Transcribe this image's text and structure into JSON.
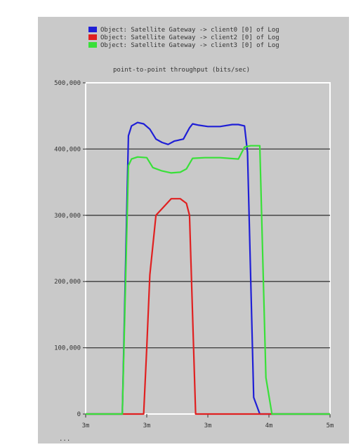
{
  "chart_data": {
    "type": "line",
    "title": "point-to-point throughput (bits/sec)",
    "xlabel": "",
    "ylabel": "",
    "x_tick_labels": [
      "3m",
      "3m",
      "3m",
      "4m",
      "5m"
    ],
    "x_tick_values": [
      0,
      1,
      2,
      3,
      4
    ],
    "y_tick_labels": [
      "0",
      "100,000",
      "200,000",
      "300,000",
      "400,000",
      "500,000"
    ],
    "y_tick_values": [
      0,
      100000,
      200000,
      300000,
      400000,
      500000
    ],
    "xlim": [
      0,
      4
    ],
    "ylim": [
      0,
      500000
    ],
    "grid": "horizontal",
    "legend_position": "top",
    "axis_overflow_label": "...",
    "series": [
      {
        "name": "Object: Satellite Gateway -> client0 [0] of Log",
        "color": "#1f1fd6",
        "x": [
          0,
          0.6,
          0.7,
          0.75,
          0.85,
          0.95,
          1.05,
          1.15,
          1.25,
          1.35,
          1.45,
          1.6,
          1.7,
          1.75,
          1.85,
          2.0,
          2.2,
          2.4,
          2.5,
          2.6,
          2.65,
          2.75,
          2.85,
          3.5,
          4.0
        ],
        "y": [
          0,
          0,
          420000,
          435000,
          440000,
          438000,
          430000,
          415000,
          410000,
          407000,
          412000,
          415000,
          432000,
          438000,
          436000,
          434000,
          434000,
          437000,
          437000,
          435000,
          395000,
          25000,
          0,
          0,
          0
        ]
      },
      {
        "name": "Object: Satellite Gateway -> client2 [0] of Log",
        "color": "#e02020",
        "x": [
          0,
          0.6,
          0.95,
          1.0,
          1.05,
          1.15,
          1.25,
          1.4,
          1.55,
          1.65,
          1.7,
          1.8,
          2.0,
          2.5,
          3.0,
          4.0
        ],
        "y": [
          0,
          0,
          0,
          100000,
          210000,
          300000,
          310000,
          325000,
          325000,
          318000,
          300000,
          0,
          0,
          0,
          0,
          0
        ]
      },
      {
        "name": "Object: Satellite Gateway -> client3 [0] of Log",
        "color": "#39e039",
        "x": [
          0,
          0.6,
          0.7,
          0.75,
          0.85,
          1.0,
          1.1,
          1.25,
          1.4,
          1.55,
          1.65,
          1.75,
          1.95,
          2.2,
          2.5,
          2.6,
          2.7,
          2.85,
          2.95,
          3.05,
          3.1,
          3.5,
          4.0
        ],
        "y": [
          0,
          0,
          375000,
          385000,
          388000,
          387000,
          372000,
          367000,
          364000,
          365000,
          370000,
          386000,
          387000,
          387000,
          385000,
          403000,
          405000,
          405000,
          55000,
          0,
          0,
          0,
          0
        ]
      }
    ]
  }
}
